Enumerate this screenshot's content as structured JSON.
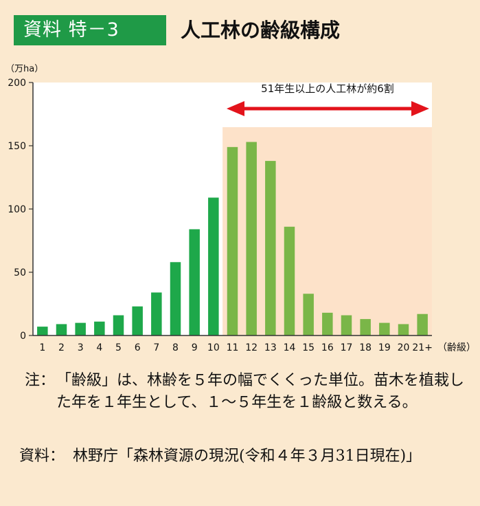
{
  "header": {
    "badge": "資料 特－3",
    "title": "人工林の齢級構成"
  },
  "chart_data": {
    "type": "bar",
    "ylabel": "（万ha）",
    "xlabel": "（齢級）",
    "ylim": [
      0,
      200
    ],
    "yticks": [
      "0",
      "50",
      "100",
      "150",
      "200"
    ],
    "categories": [
      "1",
      "2",
      "3",
      "4",
      "5",
      "6",
      "7",
      "8",
      "9",
      "10",
      "11",
      "12",
      "13",
      "14",
      "15",
      "16",
      "17",
      "18",
      "19",
      "20",
      "21+"
    ],
    "values": [
      7,
      9,
      10,
      11,
      16,
      23,
      34,
      58,
      84,
      109,
      149,
      153,
      138,
      86,
      33,
      18,
      16,
      13,
      10,
      9,
      17
    ],
    "annotation": "51年生以上の人工林が約6割",
    "highlight_from_category": "11",
    "colors": {
      "bar_normal": "#1ea84a",
      "bar_highlight": "#7ab648",
      "highlight_bg": "#fde2c9",
      "arrow": "#e3131b"
    }
  },
  "notes": {
    "note_label": "注：",
    "note_text": "「齢級」は、林齢を５年の幅でくくった単位。苗木を植栽した年を１年生として、１～５年生を１齢級と数える。",
    "source_label": "資料：",
    "source_text": "林野庁「森林資源の現況(令和４年３月31日現在)」"
  }
}
